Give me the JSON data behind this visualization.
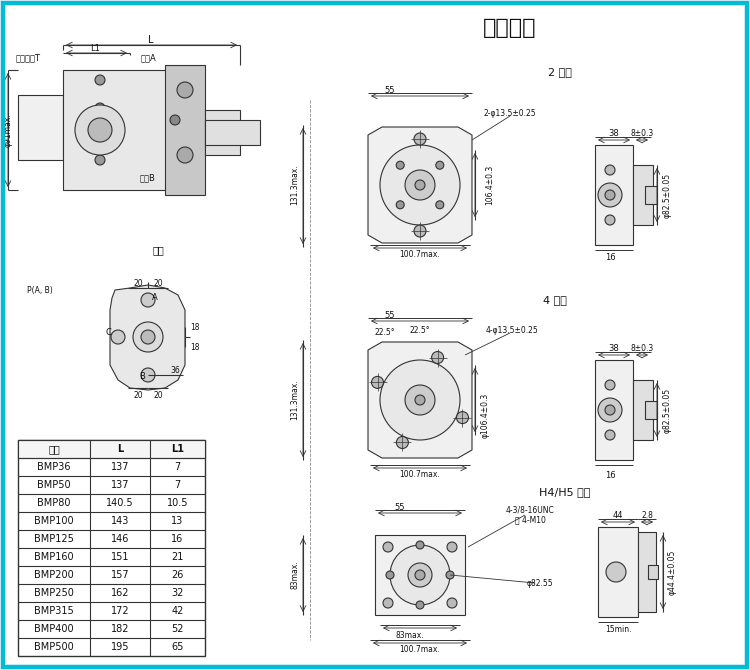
{
  "bg_color": "#d4eef8",
  "white": "#ffffff",
  "black": "#000000",
  "line_color": "#333333",
  "title": "连接尺寸",
  "flange2_title": "2 法兰",
  "flange4_title": "4 法兰",
  "flangeH_title": "H4/H5 法兰",
  "table_headers": [
    "型号",
    "L",
    "L1"
  ],
  "table_rows": [
    [
      "BMP36",
      "137",
      "7"
    ],
    [
      "BMP50",
      "137",
      "7"
    ],
    [
      "BMP80",
      "140.5",
      "10.5"
    ],
    [
      "BMP100",
      "143",
      "13"
    ],
    [
      "BMP125",
      "146",
      "16"
    ],
    [
      "BMP160",
      "151",
      "21"
    ],
    [
      "BMP200",
      "157",
      "26"
    ],
    [
      "BMP250",
      "162",
      "32"
    ],
    [
      "BMP315",
      "172",
      "42"
    ],
    [
      "BMP400",
      "182",
      "52"
    ],
    [
      "BMP500",
      "195",
      "65"
    ]
  ]
}
